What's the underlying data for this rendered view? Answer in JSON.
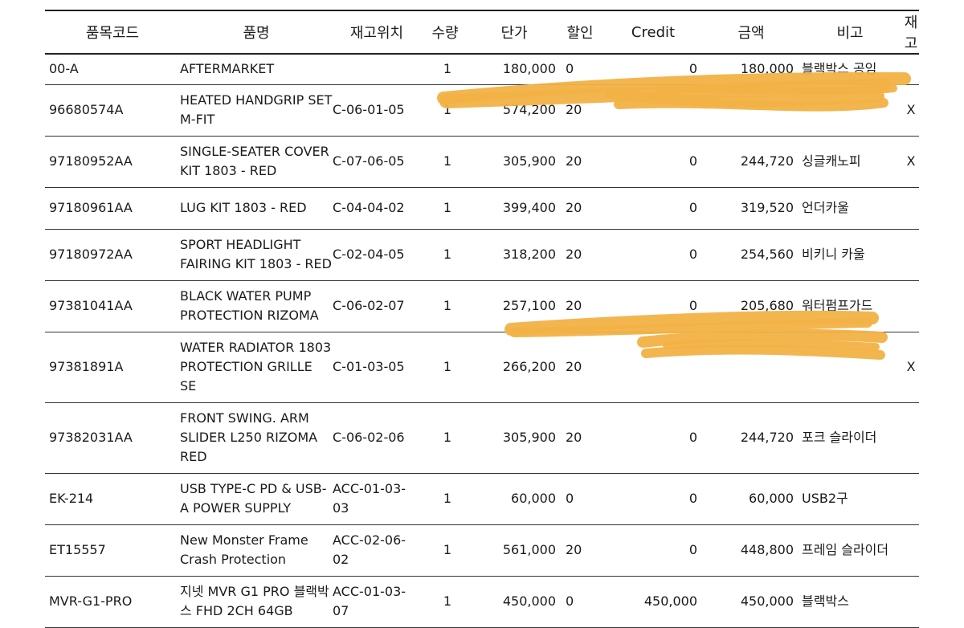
{
  "headers": {
    "code": "품목코드",
    "name": "품명",
    "location": "재고위치",
    "qty": "수량",
    "unit_price": "단가",
    "discount": "할인",
    "credit": "Credit",
    "amount": "금액",
    "note": "비고",
    "stock": "재고"
  },
  "rows": [
    {
      "code": "00-A",
      "name": "AFTERMARKET",
      "location": "",
      "qty": "1",
      "unit_price": "180,000",
      "discount": "0",
      "credit": "0",
      "amount": "180,000",
      "note": "블랙박스 공임",
      "stock": ""
    },
    {
      "code": "96680574A",
      "name": "HEATED HANDGRIP SET M-FIT",
      "location": "C-06-01-05",
      "qty": "1",
      "unit_price": "574,200",
      "discount": "20",
      "credit": "",
      "amount": "",
      "note": "",
      "stock": "X"
    },
    {
      "code": "97180952AA",
      "name": "SINGLE-SEATER COVER KIT 1803 - RED",
      "location": "C-07-06-05",
      "qty": "1",
      "unit_price": "305,900",
      "discount": "20",
      "credit": "0",
      "amount": "244,720",
      "note": "싱글캐노피",
      "stock": "X"
    },
    {
      "code": "97180961AA",
      "name": "LUG KIT 1803 - RED",
      "location": "C-04-04-02",
      "qty": "1",
      "unit_price": "399,400",
      "discount": "20",
      "credit": "0",
      "amount": "319,520",
      "note": "언더카울",
      "stock": ""
    },
    {
      "code": "97180972AA",
      "name": "SPORT HEADLIGHT FAIRING KIT 1803 - RED",
      "location": "C-02-04-05",
      "qty": "1",
      "unit_price": "318,200",
      "discount": "20",
      "credit": "0",
      "amount": "254,560",
      "note": "비키니 카울",
      "stock": ""
    },
    {
      "code": "97381041AA",
      "name": "BLACK WATER PUMP PROTECTION RIZOMA",
      "location": "C-06-02-07",
      "qty": "1",
      "unit_price": "257,100",
      "discount": "20",
      "credit": "0",
      "amount": "205,680",
      "note": "워터펌프가드",
      "stock": ""
    },
    {
      "code": "97381891A",
      "name": "WATER RADIATOR 1803 PROTECTION GRILLE SE",
      "location": "C-01-03-05",
      "qty": "1",
      "unit_price": "266,200",
      "discount": "20",
      "credit": "",
      "amount": "",
      "note": "",
      "stock": "X"
    },
    {
      "code": "97382031AA",
      "name": "FRONT SWING. ARM SLIDER L250 RIZOMA RED",
      "location": "C-06-02-06",
      "qty": "1",
      "unit_price": "305,900",
      "discount": "20",
      "credit": "0",
      "amount": "244,720",
      "note": "포크 슬라이더",
      "stock": ""
    },
    {
      "code": "EK-214",
      "name": "USB TYPE-C PD & USB-A POWER SUPPLY",
      "location": "ACC-01-03-03",
      "qty": "1",
      "unit_price": "60,000",
      "discount": "0",
      "credit": "0",
      "amount": "60,000",
      "note": "USB2구",
      "stock": ""
    },
    {
      "code": "ET15557",
      "name": "New Monster Frame Crash Protection",
      "location": "ACC-02-06-02",
      "qty": "1",
      "unit_price": "561,000",
      "discount": "20",
      "credit": "0",
      "amount": "448,800",
      "note": "프레임 슬라이더",
      "stock": ""
    },
    {
      "code": "MVR-G1-PRO",
      "name": "지넷 MVR G1 PRO 블랙박스 FHD 2CH 64GB",
      "location": "ACC-01-03-07",
      "qty": "1",
      "unit_price": "450,000",
      "discount": "0",
      "credit": "450,000",
      "amount": "450,000",
      "note": "블랙박스",
      "stock": ""
    }
  ],
  "redaction_color": "#f2b246"
}
